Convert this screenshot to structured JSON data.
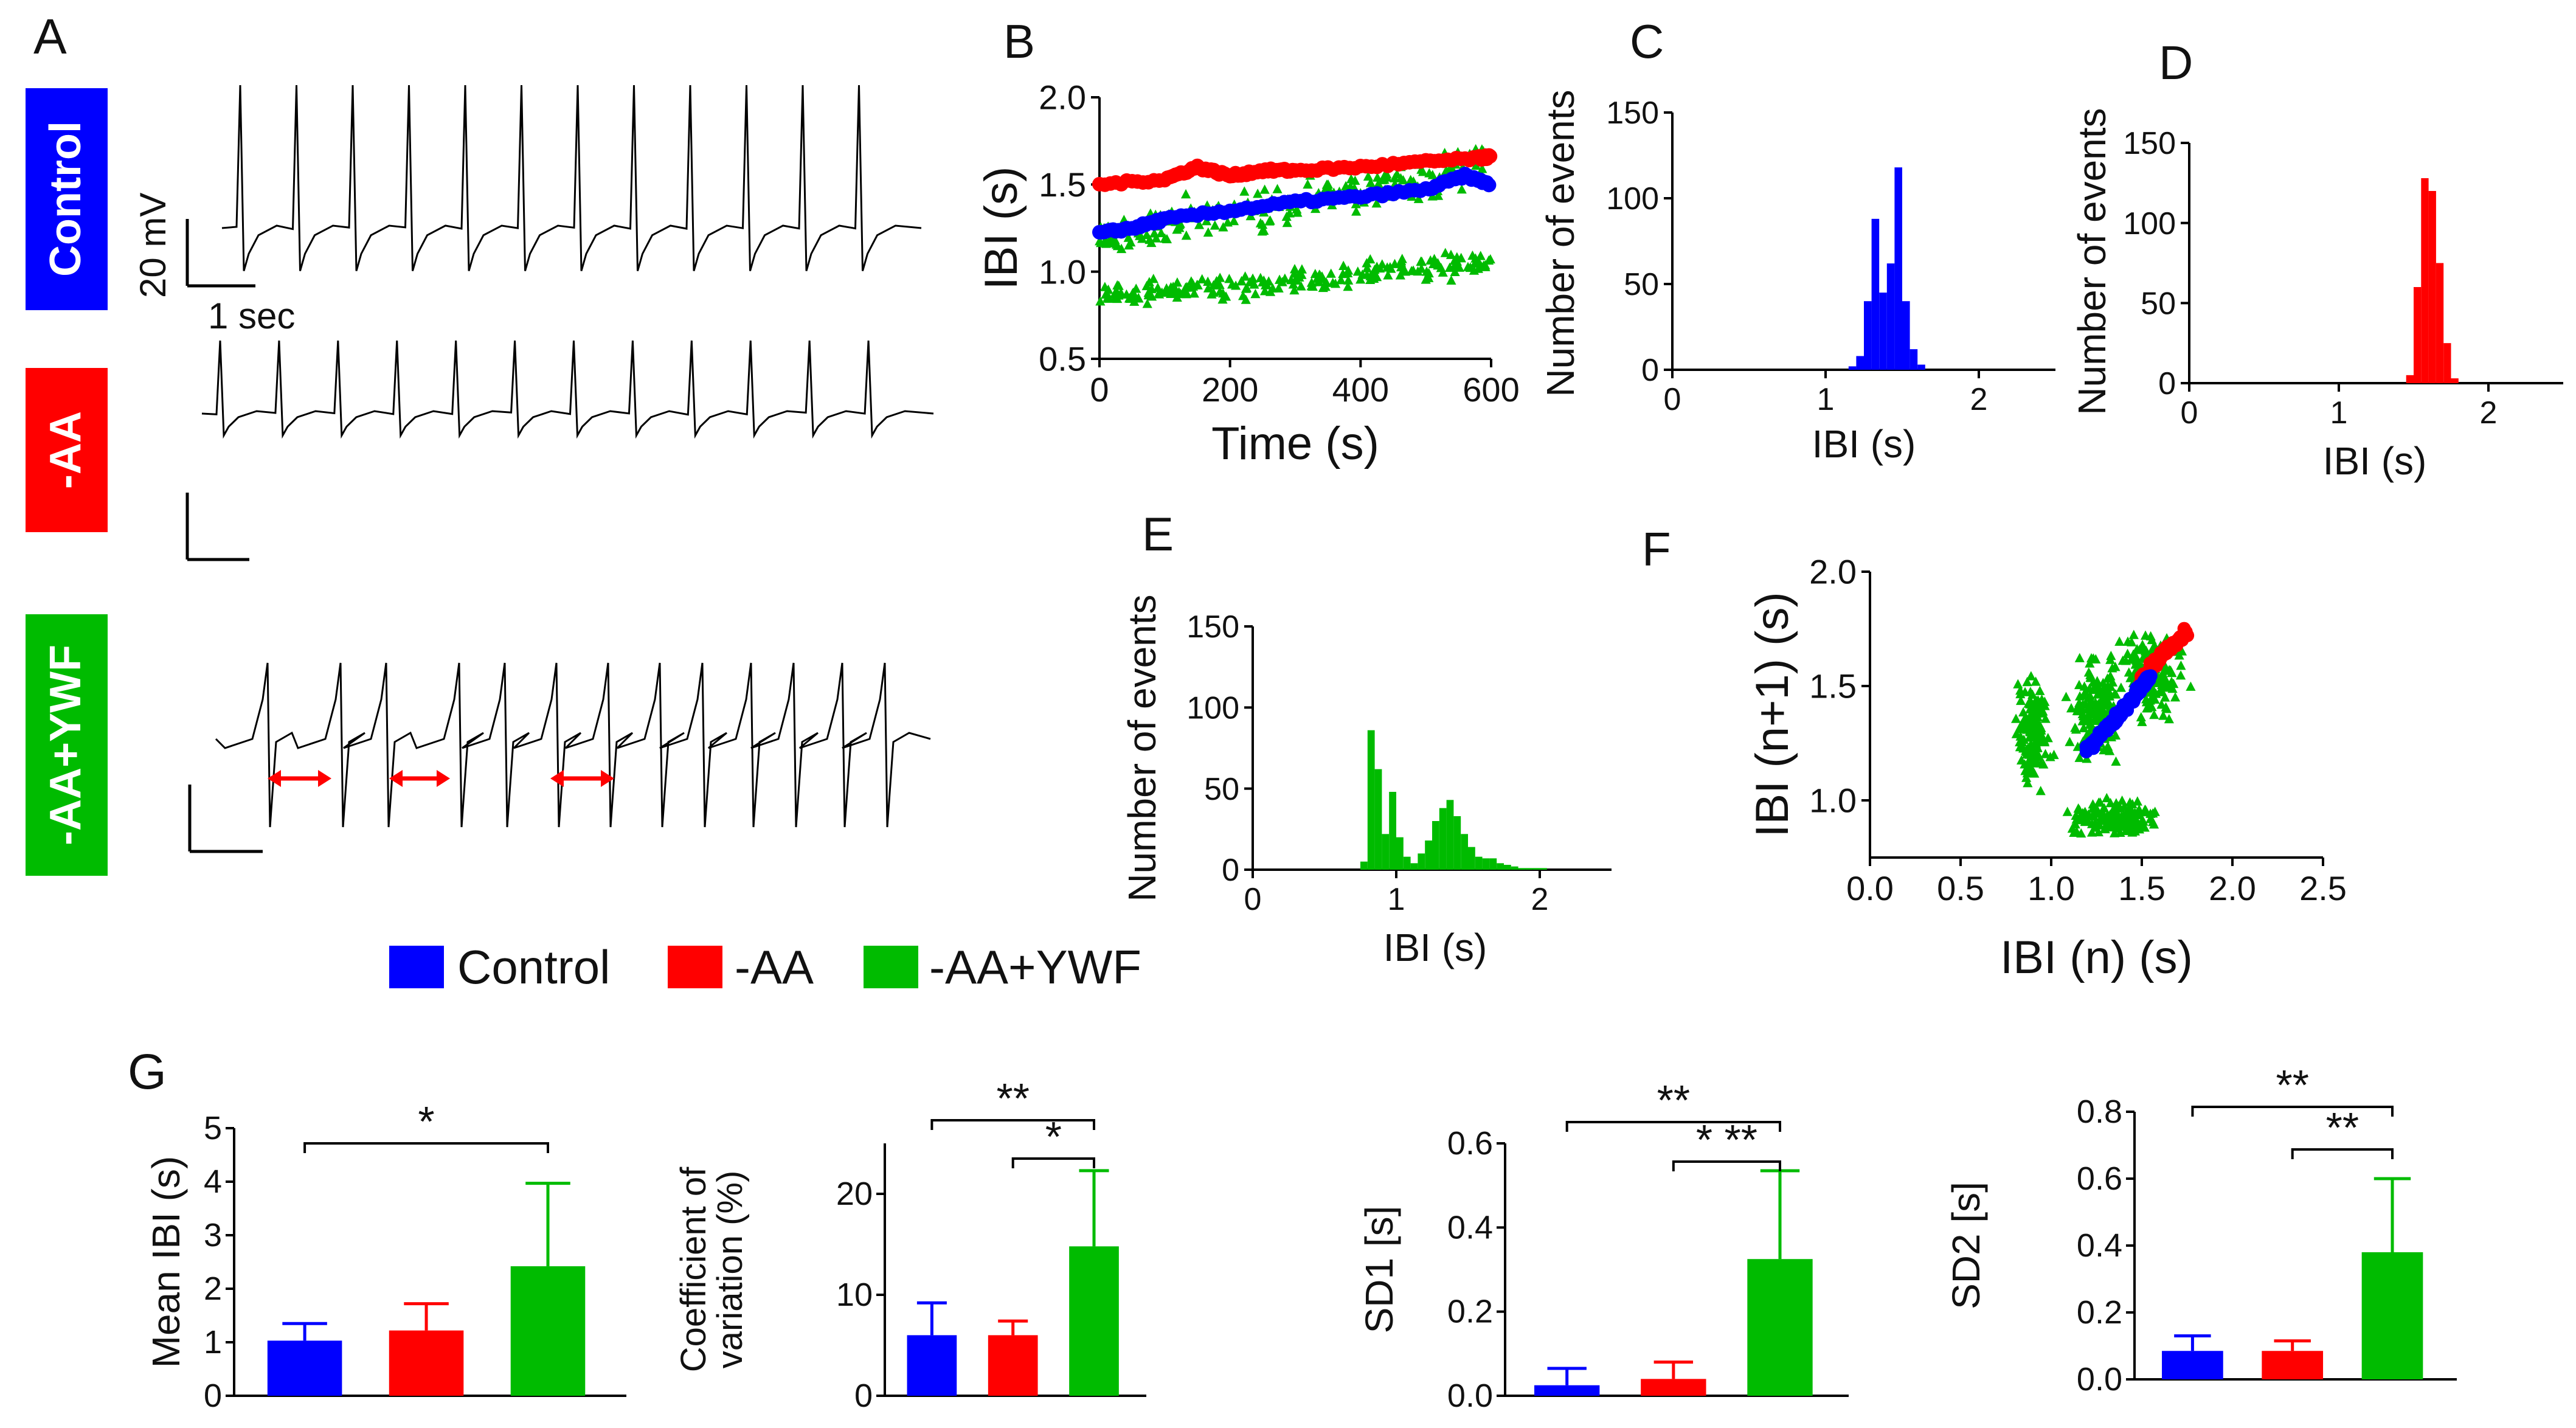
{
  "colors": {
    "control": "#0000ff",
    "aa": "#ff0000",
    "aaywf": "#00bb00",
    "arrow": "#ff0000",
    "trace": "#000000"
  },
  "panel_a": {
    "letter": "A",
    "conditions": [
      {
        "key": "control",
        "label": "Control"
      },
      {
        "key": "aa",
        "label": "-AA"
      },
      {
        "key": "aaywf",
        "label": "-AA+YWF"
      }
    ],
    "scalebar_voltage": "20 mV",
    "scalebar_time": "1 sec"
  },
  "legend": [
    {
      "key": "control",
      "label": "Control"
    },
    {
      "key": "aa",
      "label": "-AA"
    },
    {
      "key": "aaywf",
      "label": "-AA+YWF"
    }
  ],
  "chart_data": [
    {
      "id": "B",
      "type": "scatter",
      "letter": "B",
      "xlabel": "Time (s)",
      "ylabel": "IBI (s)",
      "xlim": [
        0,
        600
      ],
      "ylim": [
        0.5,
        2.0
      ],
      "xticks": [
        "0",
        "200",
        "400",
        "600"
      ],
      "yticks": [
        "0.5",
        "1.0",
        "1.5",
        "2.0"
      ],
      "series": [
        {
          "name": "-AA+YWF",
          "key": "aaywf",
          "marker": "triangle",
          "description": "two bands",
          "bands": [
            {
              "x": [
                0,
                600
              ],
              "y": [
                0.85,
                1.05
              ],
              "spread": 0.06
            },
            {
              "x": [
                0,
                600
              ],
              "y": [
                1.2,
                1.6
              ],
              "spread": 0.12
            }
          ]
        },
        {
          "name": "-AA",
          "key": "aa",
          "marker": "circle",
          "x": [
            0,
            100,
            150,
            200,
            250,
            300,
            400,
            500,
            580,
            600
          ],
          "y": [
            1.5,
            1.53,
            1.6,
            1.55,
            1.58,
            1.58,
            1.6,
            1.63,
            1.65,
            1.66
          ]
        },
        {
          "name": "Control",
          "key": "control",
          "marker": "circle",
          "x": [
            0,
            50,
            100,
            200,
            300,
            400,
            500,
            560,
            600
          ],
          "y": [
            1.22,
            1.25,
            1.3,
            1.35,
            1.4,
            1.43,
            1.47,
            1.55,
            1.5
          ]
        }
      ]
    },
    {
      "id": "C",
      "type": "bar",
      "letter": "C",
      "xlabel": "IBI (s)",
      "ylabel": "Number of events",
      "xlim": [
        0,
        2.5
      ],
      "ylim": [
        0,
        150
      ],
      "xticks": [
        "0",
        "1",
        "2"
      ],
      "yticks": [
        "0",
        "50",
        "100",
        "150"
      ],
      "bin_width": 0.05,
      "key": "control",
      "bins": [
        1.15,
        1.2,
        1.25,
        1.3,
        1.35,
        1.4,
        1.45,
        1.5,
        1.55,
        1.6
      ],
      "values": [
        2,
        8,
        40,
        88,
        45,
        62,
        118,
        40,
        12,
        3
      ]
    },
    {
      "id": "D",
      "type": "bar",
      "letter": "D",
      "xlabel": "IBI (s)",
      "ylabel": "Number of events",
      "xlim": [
        0,
        2.5
      ],
      "ylim": [
        0,
        150
      ],
      "xticks": [
        "0",
        "1",
        "2"
      ],
      "yticks": [
        "0",
        "50",
        "100",
        "150"
      ],
      "bin_width": 0.05,
      "key": "aa",
      "bins": [
        1.45,
        1.5,
        1.55,
        1.6,
        1.65,
        1.7,
        1.75
      ],
      "values": [
        5,
        60,
        128,
        120,
        75,
        25,
        3
      ]
    },
    {
      "id": "E",
      "type": "bar",
      "letter": "E",
      "xlabel": "IBI (s)",
      "ylabel": "Number of events",
      "xlim": [
        0,
        2.5
      ],
      "ylim": [
        0,
        150
      ],
      "xticks": [
        "0",
        "1",
        "2"
      ],
      "yticks": [
        "0",
        "50",
        "100",
        "150"
      ],
      "bin_width": 0.05,
      "key": "aaywf",
      "bins": [
        0.75,
        0.8,
        0.85,
        0.9,
        0.95,
        1.0,
        1.05,
        1.1,
        1.15,
        1.2,
        1.25,
        1.3,
        1.35,
        1.4,
        1.45,
        1.5,
        1.55,
        1.6,
        1.65,
        1.7,
        1.75,
        1.8,
        1.85,
        1.9,
        1.95,
        2.0
      ],
      "values": [
        5,
        86,
        62,
        22,
        48,
        20,
        8,
        4,
        10,
        18,
        30,
        38,
        43,
        33,
        22,
        14,
        8,
        7,
        7,
        4,
        3,
        2,
        1,
        1,
        1,
        1
      ]
    },
    {
      "id": "F",
      "type": "scatter",
      "letter": "F",
      "xlabel": "IBI (n) (s)",
      "ylabel": "IBI (n+1) (s)",
      "xlim": [
        0.0,
        2.5
      ],
      "ylim": [
        0.75,
        2.0
      ],
      "xticks": [
        "0.0",
        "0.5",
        "1.0",
        "1.5",
        "2.0",
        "2.5"
      ],
      "yticks": [
        "1.0",
        "1.5",
        "2.0"
      ],
      "series": [
        {
          "name": "-AA+YWF",
          "key": "aaywf",
          "marker": "triangle",
          "description": "four clusters",
          "clusters": [
            {
              "x": 0.9,
              "y": 1.3,
              "rx": 0.12,
              "ry": 0.28
            },
            {
              "x": 1.35,
              "y": 0.92,
              "rx": 0.35,
              "ry": 0.1
            },
            {
              "x": 1.55,
              "y": 1.55,
              "rx": 0.25,
              "ry": 0.25
            },
            {
              "x": 1.25,
              "y": 1.4,
              "rx": 0.18,
              "ry": 0.3
            }
          ]
        },
        {
          "name": "-AA",
          "key": "aa",
          "marker": "circle",
          "x": [
            1.5,
            1.55,
            1.6,
            1.65,
            1.7,
            1.75
          ],
          "y": [
            1.52,
            1.58,
            1.62,
            1.66,
            1.7,
            1.74
          ]
        },
        {
          "name": "Control",
          "key": "control",
          "marker": "circle",
          "x": [
            1.2,
            1.25,
            1.3,
            1.35,
            1.4,
            1.45,
            1.5,
            1.55
          ],
          "y": [
            1.22,
            1.27,
            1.31,
            1.35,
            1.4,
            1.45,
            1.5,
            1.55
          ]
        }
      ]
    },
    {
      "id": "G1",
      "type": "bar",
      "letter": "G",
      "ylabel": "Mean IBI (s)",
      "ylim": [
        0,
        5
      ],
      "yticks": [
        "0",
        "1",
        "2",
        "3",
        "4",
        "5"
      ],
      "categories": [
        "Control",
        "-AA",
        "-AA+YWF"
      ],
      "values": [
        1.03,
        1.22,
        2.42
      ],
      "errors": [
        0.32,
        0.5,
        1.55
      ],
      "significance": [
        {
          "from": 0,
          "to": 2,
          "label": "*"
        }
      ]
    },
    {
      "id": "G2",
      "type": "bar",
      "ylabel": "Coefficient of variation (%)",
      "ylabel_lines": [
        "Coefficient of",
        "variation (%)"
      ],
      "ylim": [
        0,
        25
      ],
      "yticks": [
        "0",
        "10",
        "20"
      ],
      "categories": [
        "Control",
        "-AA",
        "-AA+YWF"
      ],
      "values": [
        6.0,
        6.0,
        14.8
      ],
      "errors": [
        3.2,
        1.4,
        7.5
      ],
      "significance": [
        {
          "from": 0,
          "to": 2,
          "label": "**"
        },
        {
          "from": 1,
          "to": 2,
          "label": "*"
        }
      ]
    },
    {
      "id": "G3",
      "type": "bar",
      "ylabel": "SD1 [s]",
      "ylim": [
        0,
        0.6
      ],
      "yticks": [
        "0.0",
        "0.2",
        "0.4",
        "0.6"
      ],
      "categories": [
        "Control",
        "-AA",
        "-AA+YWF"
      ],
      "values": [
        0.025,
        0.04,
        0.325
      ],
      "errors": [
        0.04,
        0.04,
        0.21
      ],
      "significance": [
        {
          "from": 0,
          "to": 2,
          "label": "**"
        },
        {
          "from": 1,
          "to": 2,
          "label": "* **"
        }
      ]
    },
    {
      "id": "G4",
      "type": "bar",
      "ylabel": "SD2 [s]",
      "ylim": [
        0,
        0.8
      ],
      "yticks": [
        "0.0",
        "0.2",
        "0.4",
        "0.6",
        "0.8"
      ],
      "categories": [
        "Control",
        "-AA",
        "-AA+YWF"
      ],
      "values": [
        0.085,
        0.085,
        0.38
      ],
      "errors": [
        0.045,
        0.03,
        0.22
      ],
      "significance": [
        {
          "from": 0,
          "to": 2,
          "label": "**"
        },
        {
          "from": 1,
          "to": 2,
          "label": "**"
        }
      ]
    }
  ]
}
